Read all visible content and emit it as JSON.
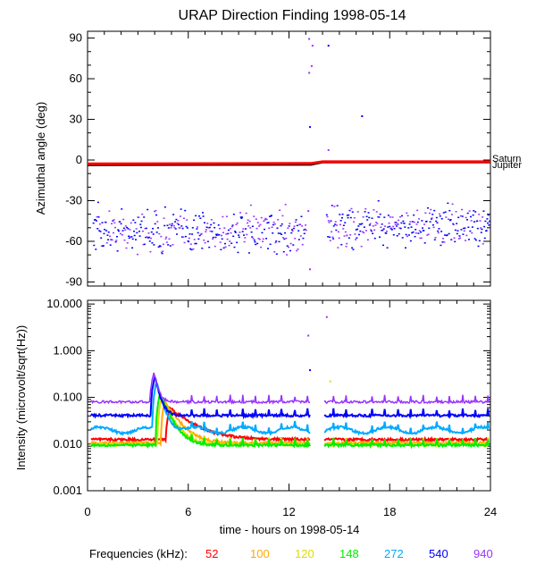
{
  "chart_data": [
    {
      "type": "scatter",
      "title": "URAP Direction Finding  1998-05-14",
      "ylabel": "Azimuthal angle (deg)",
      "xlim": [
        0,
        24
      ],
      "ylim": [
        -93,
        95
      ],
      "yticks": [
        "90",
        "60",
        "30",
        "0",
        "-30",
        "-60",
        "-90"
      ],
      "reference_lines": [
        {
          "name": "Saturn",
          "values_hours": [
            0,
            13.3,
            14,
            24
          ],
          "values": [
            -3.5,
            -3.2,
            -1.5,
            -1.5
          ],
          "color": "#000000"
        },
        {
          "name": "Jupiter",
          "values_hours": [
            0,
            13.3,
            14,
            24
          ],
          "values": [
            -2.8,
            -2.5,
            -1.2,
            -1.2
          ],
          "color": "#ff0000"
        }
      ],
      "scatter_bands": [
        {
          "hours": [
            0.3,
            13.0
          ],
          "center": -52,
          "spread": 12,
          "colors": [
            "#0000ff",
            "#9933ff"
          ]
        },
        {
          "hours": [
            14.2,
            23.9
          ],
          "center": -48,
          "spread": 11,
          "colors": [
            "#0000ff",
            "#9933ff"
          ]
        }
      ],
      "outliers": [
        {
          "x": 13.15,
          "y": 90,
          "color": "#9933ff"
        },
        {
          "x": 13.35,
          "y": 85,
          "color": "#9933ff"
        },
        {
          "x": 13.3,
          "y": 70,
          "color": "#9933ff"
        },
        {
          "x": 13.15,
          "y": 65,
          "color": "#9933ff"
        },
        {
          "x": 14.3,
          "y": 85,
          "color": "#0000ff"
        },
        {
          "x": 13.2,
          "y": 25,
          "color": "#0000ff"
        },
        {
          "x": 14.3,
          "y": 8,
          "color": "#9933ff"
        },
        {
          "x": 16.3,
          "y": 33,
          "color": "#0000ff"
        },
        {
          "x": 15.4,
          "y": -55,
          "color": "#9933ff"
        },
        {
          "x": 13.1,
          "y": -37,
          "color": "#9933ff"
        },
        {
          "x": 13.2,
          "y": -80,
          "color": "#9933ff"
        }
      ]
    },
    {
      "type": "line",
      "ylabel": "Intensity (microvolt/sqrt(Hz))",
      "xlabel": "time - hours on 1998-05-14",
      "xlim": [
        0,
        24
      ],
      "ylim": [
        0.001,
        12
      ],
      "ylog": true,
      "xticks": [
        "0",
        "6",
        "12",
        "18",
        "24"
      ],
      "yticks": [
        "10.000",
        "1.000",
        "0.100",
        "0.010",
        "0.001"
      ],
      "gap_hours": [
        13.3,
        14.0
      ],
      "series": [
        {
          "name": "52",
          "color": "#ff0000",
          "background": 0.0125,
          "peak": 0.06,
          "peak_time": 4.9,
          "decay": 1.2
        },
        {
          "name": "100",
          "color": "#ffaa00",
          "background": 0.0105,
          "peak": 0.08,
          "peak_time": 4.6,
          "decay": 0.7
        },
        {
          "name": "120",
          "color": "#dddd00",
          "background": 0.0098,
          "peak": 0.1,
          "peak_time": 4.4,
          "decay": 0.55
        },
        {
          "name": "148",
          "color": "#00ee00",
          "background": 0.0095,
          "peak": 0.12,
          "peak_time": 4.3,
          "decay": 0.5
        },
        {
          "name": "272",
          "color": "#00aaff",
          "background": 0.02,
          "peak": 0.2,
          "peak_time": 4.1,
          "decay": 0.35
        },
        {
          "name": "540",
          "color": "#0000ff",
          "background": 0.041,
          "peak": 0.28,
          "peak_time": 4.0,
          "decay": 0.25
        },
        {
          "name": "940",
          "color": "#9933ff",
          "background": 0.08,
          "peak": 0.35,
          "peak_time": 3.95,
          "decay": 0.2
        }
      ],
      "spikes": [
        {
          "x": 13.1,
          "y": 2.2,
          "color": "#9933ff"
        },
        {
          "x": 14.2,
          "y": 5.5,
          "color": "#9933ff"
        },
        {
          "x": 13.2,
          "y": 0.4,
          "color": "#0000ff"
        },
        {
          "x": 14.4,
          "y": 0.23,
          "color": "#dddd00"
        }
      ]
    }
  ],
  "legend": {
    "label": "Frequencies (kHz):",
    "items": [
      {
        "text": "52",
        "color": "#ff0000"
      },
      {
        "text": "100",
        "color": "#ffaa00"
      },
      {
        "text": "120",
        "color": "#dddd00"
      },
      {
        "text": "148",
        "color": "#00ee00"
      },
      {
        "text": "272",
        "color": "#00aaff"
      },
      {
        "text": "540",
        "color": "#0000ff"
      },
      {
        "text": "940",
        "color": "#9933ff"
      }
    ]
  }
}
